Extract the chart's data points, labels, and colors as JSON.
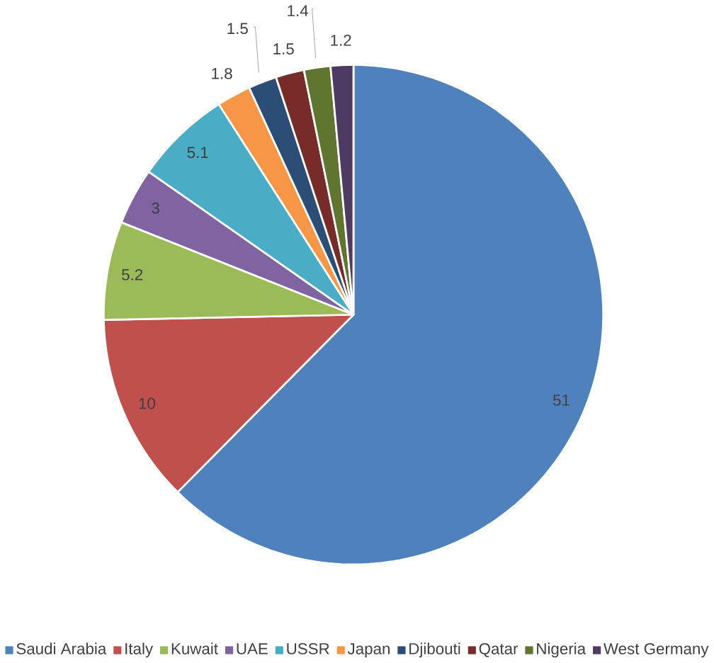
{
  "chart_data": {
    "type": "pie",
    "categories": [
      "Saudi Arabia",
      "Italy",
      "Kuwait",
      "UAE",
      "USSR",
      "Japan",
      "Djibouti",
      "Qatar",
      "Nigeria",
      "West Germany"
    ],
    "values": [
      51,
      10,
      5.2,
      3,
      5.1,
      1.8,
      1.5,
      1.5,
      1.4,
      1.2
    ],
    "colors": [
      "#4f81bd",
      "#c0504d",
      "#9bbb59",
      "#8064a2",
      "#4bacc6",
      "#f79646",
      "#2c4d75",
      "#772c2a",
      "#5f7530",
      "#4d3b62"
    ],
    "data_labels": true,
    "legend": "bottom"
  }
}
